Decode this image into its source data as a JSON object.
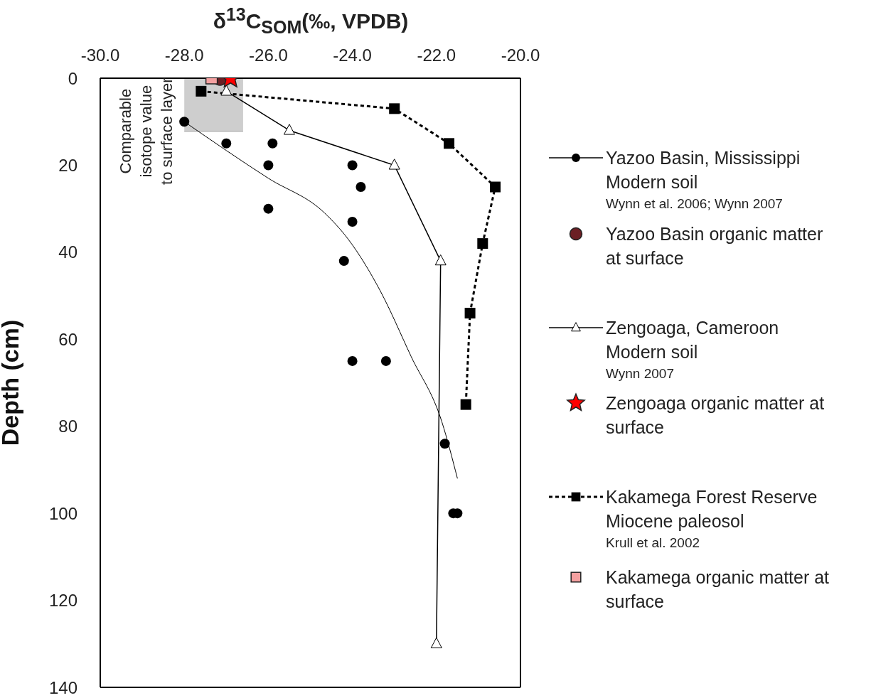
{
  "chart_data": {
    "type": "scatter",
    "xlabel": "δ$^{13}$C$_{SOM}$(‰, VPDB)",
    "ylabel": "Depth (cm)",
    "xlim": [
      -30,
      -20
    ],
    "xticks": [
      {
        "value": -30,
        "label": "-30.0"
      },
      {
        "value": -28,
        "label": "-28.0"
      },
      {
        "value": -26,
        "label": "-26.0"
      },
      {
        "value": -24,
        "label": "-24.0"
      },
      {
        "value": -22,
        "label": "-22.0"
      },
      {
        "value": -20,
        "label": "-20.0"
      }
    ],
    "ylim": [
      140,
      0
    ],
    "yticks": [
      0,
      20,
      40,
      60,
      80,
      100,
      120,
      140
    ],
    "grid": false,
    "legend": "right",
    "series": [
      {
        "name": "Yazoo Basin, Mississippi Modern soil",
        "type": "scatter",
        "marker": "circle",
        "color": "#000000",
        "x": [
          -28.0,
          -27.0,
          -25.9,
          -26.0,
          -24.0,
          -23.8,
          -26.0,
          -24.0,
          -24.2,
          -24.0,
          -23.2,
          -21.8,
          -21.6,
          -21.5
        ],
        "values": [
          10,
          15,
          15,
          20,
          20,
          25,
          30,
          33,
          42,
          65,
          65,
          84,
          100,
          100
        ]
      },
      {
        "name": "Yazoo Basin organic matter at surface",
        "type": "scatter",
        "marker": "circle",
        "color": "#6b1f24",
        "x": [
          -27.15
        ],
        "values": [
          0
        ]
      },
      {
        "name": "Zengoaga, Cameroon Modern soil",
        "type": "line",
        "marker": "triangle",
        "line_style": "solid",
        "color": "#000000",
        "x": [
          -27.0,
          -25.5,
          -23.0,
          -21.9,
          -22.0
        ],
        "values": [
          3,
          12,
          20,
          42,
          130
        ]
      },
      {
        "name": "Zengoaga organic matter at surface",
        "type": "scatter",
        "marker": "star",
        "color": "#ff0000",
        "x": [
          -26.9
        ],
        "values": [
          0
        ]
      },
      {
        "name": "Kakamega Forest Reserve Miocene paleosol",
        "type": "line",
        "marker": "square",
        "line_style": "dashed",
        "color": "#000000",
        "x": [
          -27.6,
          -23.0,
          -21.7,
          -20.6,
          -20.9,
          -21.2,
          -21.3
        ],
        "values": [
          3,
          7,
          15,
          25,
          38,
          54,
          75
        ]
      },
      {
        "name": "Kakamega organic matter at surface",
        "type": "scatter",
        "marker": "square",
        "color": "#f4a0a0",
        "x": [
          -27.35
        ],
        "values": [
          0
        ]
      },
      {
        "type": "line",
        "marker": "none",
        "line_style": "solid",
        "color": "#000000",
        "x": [
          -28.0,
          -26.0,
          -24.66,
          -24.1,
          -23.33,
          -22.6,
          -21.87,
          -21.5
        ],
        "values": [
          10,
          23,
          31,
          37,
          49,
          64,
          79,
          92
        ]
      },
      {
        "type": "area",
        "color": "#a6a6a6",
        "x": [
          -28.0,
          -26.6
        ],
        "values": [
          12.2,
          12.2
        ]
      }
    ],
    "annotations": [
      "Wynn et al. 2006; Wynn 2007",
      "Wynn 2007",
      "Krull et al. 2002",
      {
        "text": "Comparable\nisotope value\nto surface layer",
        "x": -28.0,
        "y": 12.2
      }
    ]
  }
}
